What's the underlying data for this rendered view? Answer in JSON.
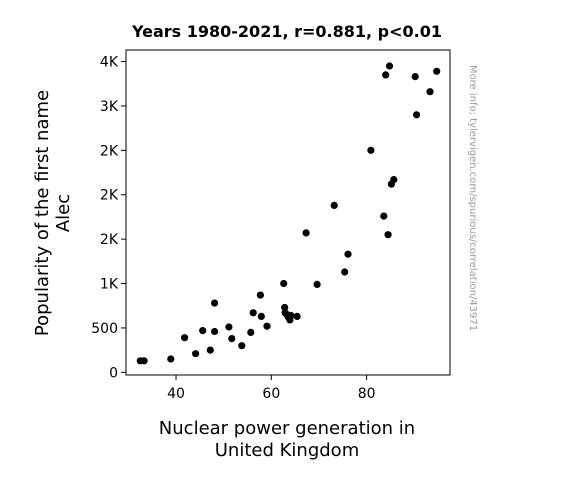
{
  "chart_data": {
    "type": "scatter",
    "title": "Years 1980-2021, r=0.881, p<0.01",
    "xlabel": [
      "Nuclear power generation in",
      "United Kingdom"
    ],
    "ylabel": [
      "Popularity of the first name",
      "Alec"
    ],
    "watermark": "More info: tylervigen.com/spurious/correlation/43971",
    "xlim": [
      29.5,
      97.5
    ],
    "ylim": [
      -30,
      3630
    ],
    "grid": false,
    "legend": "none",
    "point_color": "#000000",
    "x_ticks": [
      {
        "value": 40,
        "label": "40"
      },
      {
        "value": 60,
        "label": "60"
      },
      {
        "value": 80,
        "label": "80"
      }
    ],
    "y_ticks": [
      {
        "value": 0,
        "label": "0"
      },
      {
        "value": 500,
        "label": "500"
      },
      {
        "value": 1000,
        "label": "1K"
      },
      {
        "value": 1500,
        "label": "2K"
      },
      {
        "value": 2000,
        "label": "2K"
      },
      {
        "value": 2500,
        "label": "2K"
      },
      {
        "value": 3000,
        "label": "3K"
      },
      {
        "value": 3500,
        "label": "4K"
      }
    ],
    "x": [
      32.5,
      33.3,
      38.9,
      41.8,
      44.1,
      45.6,
      47.2,
      48.1,
      48.1,
      51.1,
      51.7,
      53.8,
      55.7,
      56.2,
      57.7,
      57.9,
      59.1,
      62.6,
      62.8,
      62.9,
      63.3,
      63.6,
      63.9,
      64.1,
      65.4,
      67.3,
      69.6,
      73.2,
      75.4,
      76.1,
      80.9,
      83.6,
      84.0,
      84.5,
      84.8,
      85.2,
      85.7,
      90.2,
      90.5,
      93.3,
      94.7
    ],
    "y": [
      130,
      130,
      150,
      390,
      210,
      470,
      250,
      460,
      780,
      510,
      380,
      300,
      450,
      670,
      870,
      630,
      520,
      1000,
      730,
      670,
      650,
      620,
      590,
      640,
      630,
      1570,
      990,
      1880,
      1130,
      1330,
      2500,
      1760,
      3350,
      1550,
      3450,
      2120,
      2170,
      3330,
      2900,
      3160,
      3390
    ]
  }
}
